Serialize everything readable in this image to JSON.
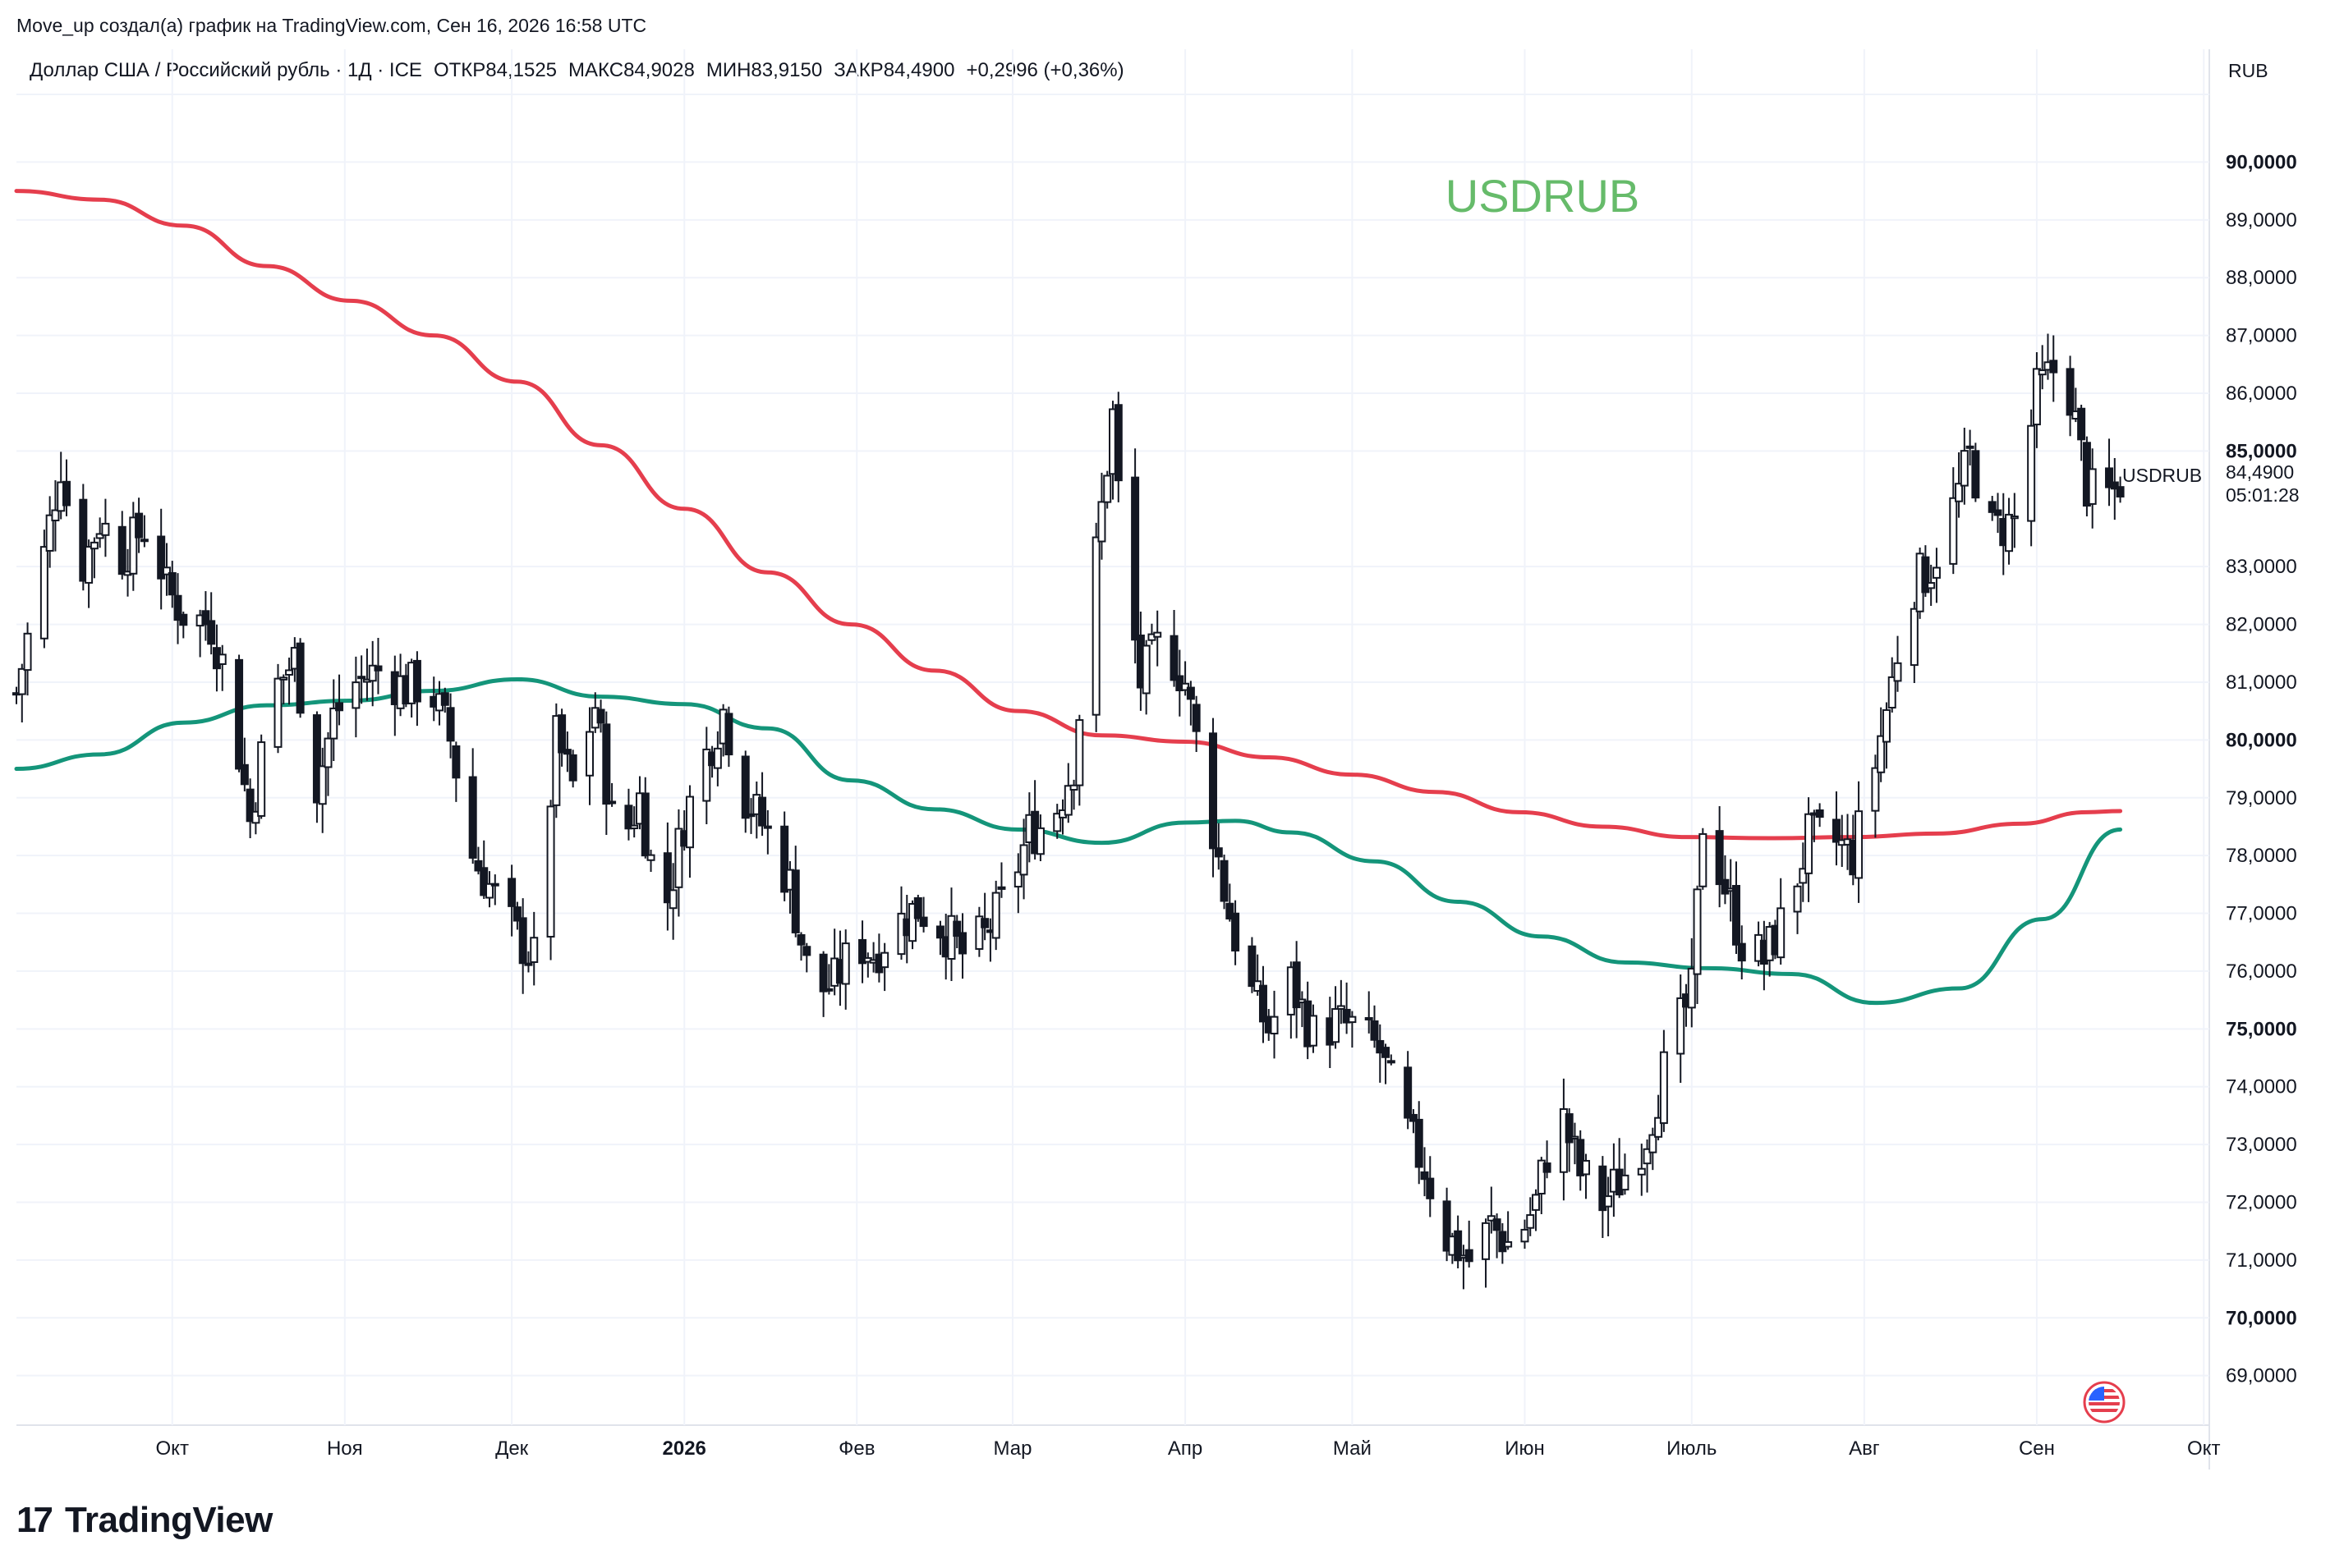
{
  "header": {
    "author_line": "Move_up создал(а) график на TradingView.com, Сен 16, 2026 16:58 UTC",
    "symbol_desc": "Доллар США / Российский рубль · 1Д · ICE",
    "open_label": "ОТКР",
    "open_value": "84,1525",
    "high_label": "МАКС",
    "high_value": "84,9028",
    "low_label": "МИН",
    "low_value": "83,9150",
    "close_label": "ЗАКР",
    "close_value": "84,4900",
    "change": "+0,2996 (+0,36%)"
  },
  "currency_button": "RUB",
  "watermark": "USDRUB",
  "last_price": {
    "value": "84,4900",
    "countdown": "05:01:28",
    "symbol": "USDRUB"
  },
  "footer": {
    "logo_mark": "17",
    "logo_text": "TradingView"
  },
  "colors": {
    "sma_red": "#e53e4d",
    "sma_green": "#14957a",
    "watermark": "#66bb6a",
    "candle_up_fill": "#ffffff",
    "candle_down_fill": "#131722",
    "grid": "#f0f3fa"
  },
  "chart_data": {
    "type": "candlestick",
    "title": "USDRUB",
    "timeframe": "1Д",
    "y_axis": {
      "range": [
        68.2,
        91.1
      ],
      "ticks": [
        "90,0000",
        "89,0000",
        "88,0000",
        "87,0000",
        "86,0000",
        "85,0000",
        "83,0000",
        "82,0000",
        "81,0000",
        "80,0000",
        "79,0000",
        "78,0000",
        "77,0000",
        "76,0000",
        "75,0000",
        "74,0000",
        "73,0000",
        "72,0000",
        "71,0000",
        "70,0000",
        "69,0000"
      ],
      "tick_values": [
        90,
        89,
        88,
        87,
        86,
        85,
        83,
        82,
        81,
        80,
        79,
        78,
        77,
        76,
        75,
        74,
        73,
        72,
        71,
        70,
        69
      ],
      "bold_ticks": [
        90,
        85,
        80,
        75,
        70
      ]
    },
    "x_axis": {
      "months": [
        "Окт",
        "Ноя",
        "Дек",
        "2026",
        "Фев",
        "Мар",
        "Апр",
        "Май",
        "Июн",
        "Июль",
        "Авг",
        "Сен",
        "Окт"
      ],
      "month_dates": [
        "2025-10-01",
        "2025-11-01",
        "2025-12-01",
        "2026-01-01",
        "2026-02-01",
        "2026-03-01",
        "2026-04-01",
        "2026-05-01",
        "2026-06-01",
        "2026-07-01",
        "2026-08-01",
        "2026-09-01",
        "2026-10-01"
      ],
      "bold_months": [
        "2026"
      ],
      "start_date": "2025-09-03",
      "end_date": "2026-10-02"
    },
    "grid": true,
    "close_path": [
      [
        "2025-09-03",
        80.8
      ],
      [
        "2025-09-08",
        83.2
      ],
      [
        "2025-09-11",
        84.8
      ],
      [
        "2025-09-14",
        82.8
      ],
      [
        "2025-09-18",
        83.8
      ],
      [
        "2025-09-22",
        83.2
      ],
      [
        "2025-09-27",
        83.8
      ],
      [
        "2025-09-30",
        82.6
      ],
      [
        "2025-10-03",
        82.2
      ],
      [
        "2025-10-08",
        82.0
      ],
      [
        "2025-10-11",
        81.0
      ],
      [
        "2025-10-15",
        78.6
      ],
      [
        "2025-10-19",
        80.8
      ],
      [
        "2025-10-23",
        81.4
      ],
      [
        "2025-10-27",
        79.2
      ],
      [
        "2025-10-30",
        80.4
      ],
      [
        "2025-11-03",
        81.0
      ],
      [
        "2025-11-07",
        81.2
      ],
      [
        "2025-11-12",
        80.9
      ],
      [
        "2025-11-16",
        81.0
      ],
      [
        "2025-11-20",
        80.0
      ],
      [
        "2025-11-24",
        78.0
      ],
      [
        "2025-11-28",
        77.3
      ],
      [
        "2025-12-02",
        76.6
      ],
      [
        "2025-12-05",
        76.2
      ],
      [
        "2025-12-09",
        80.0
      ],
      [
        "2025-12-12",
        79.2
      ],
      [
        "2025-12-16",
        80.6
      ],
      [
        "2025-12-20",
        78.0
      ],
      [
        "2025-12-24",
        79.0
      ],
      [
        "2025-12-28",
        76.8
      ],
      [
        "2026-01-01",
        78.6
      ],
      [
        "2026-01-04",
        79.5
      ],
      [
        "2026-01-08",
        80.5
      ],
      [
        "2026-01-12",
        79.0
      ],
      [
        "2026-01-16",
        78.4
      ],
      [
        "2026-01-20",
        77.5
      ],
      [
        "2026-01-24",
        75.6
      ],
      [
        "2026-01-28",
        75.8
      ],
      [
        "2026-02-01",
        76.5
      ],
      [
        "2026-02-04",
        76.3
      ],
      [
        "2026-02-08",
        76.8
      ],
      [
        "2026-02-12",
        77.1
      ],
      [
        "2026-02-16",
        76.8
      ],
      [
        "2026-02-20",
        76.3
      ],
      [
        "2026-02-24",
        76.6
      ],
      [
        "2026-02-28",
        77.3
      ],
      [
        "2026-03-04",
        78.4
      ],
      [
        "2026-03-08",
        78.6
      ],
      [
        "2026-03-12",
        79.6
      ],
      [
        "2026-03-16",
        83.2
      ],
      [
        "2026-03-19",
        85.6
      ],
      [
        "2026-03-21",
        83.0
      ],
      [
        "2026-03-24",
        81.0
      ],
      [
        "2026-03-28",
        81.8
      ],
      [
        "2026-04-01",
        81.0
      ],
      [
        "2026-04-05",
        79.0
      ],
      [
        "2026-04-08",
        77.4
      ],
      [
        "2026-04-12",
        75.8
      ],
      [
        "2026-04-16",
        75.0
      ],
      [
        "2026-04-20",
        75.8
      ],
      [
        "2026-04-24",
        74.9
      ],
      [
        "2026-04-28",
        75.1
      ],
      [
        "2026-05-02",
        75.0
      ],
      [
        "2026-05-06",
        74.6
      ],
      [
        "2026-05-10",
        73.4
      ],
      [
        "2026-05-14",
        72.6
      ],
      [
        "2026-05-18",
        71.4
      ],
      [
        "2026-05-22",
        71.0
      ],
      [
        "2026-05-26",
        71.6
      ],
      [
        "2026-05-30",
        71.2
      ],
      [
        "2026-06-03",
        72.0
      ],
      [
        "2026-06-07",
        73.7
      ],
      [
        "2026-06-11",
        72.5
      ],
      [
        "2026-06-15",
        72.0
      ],
      [
        "2026-06-19",
        72.5
      ],
      [
        "2026-06-23",
        73.2
      ],
      [
        "2026-06-27",
        74.6
      ],
      [
        "2026-07-01",
        75.6
      ],
      [
        "2026-07-03",
        78.6
      ],
      [
        "2026-07-06",
        77.8
      ],
      [
        "2026-07-10",
        76.5
      ],
      [
        "2026-07-14",
        76.2
      ],
      [
        "2026-07-18",
        77.0
      ],
      [
        "2026-07-22",
        78.3
      ],
      [
        "2026-07-26",
        78.3
      ],
      [
        "2026-07-30",
        78.0
      ],
      [
        "2026-08-03",
        79.6
      ],
      [
        "2026-08-06",
        81.0
      ],
      [
        "2026-08-09",
        82.6
      ],
      [
        "2026-08-13",
        83.0
      ],
      [
        "2026-08-17",
        84.0
      ],
      [
        "2026-08-20",
        84.9
      ],
      [
        "2026-08-24",
        83.6
      ],
      [
        "2026-08-28",
        83.8
      ],
      [
        "2026-09-01",
        86.0
      ],
      [
        "2026-09-04",
        86.4
      ],
      [
        "2026-09-07",
        86.0
      ],
      [
        "2026-09-10",
        84.4
      ],
      [
        "2026-09-12",
        84.1
      ],
      [
        "2026-09-15",
        84.3
      ],
      [
        "2026-09-16",
        84.49
      ]
    ],
    "series": [
      {
        "name": "",
        "color": "#e53e4d",
        "points": [
          [
            "2025-09-03",
            89.5
          ],
          [
            "2025-09-18",
            89.35
          ],
          [
            "2025-10-03",
            88.9
          ],
          [
            "2025-10-18",
            88.2
          ],
          [
            "2025-11-02",
            87.6
          ],
          [
            "2025-11-17",
            87.0
          ],
          [
            "2025-12-02",
            86.2
          ],
          [
            "2025-12-17",
            85.1
          ],
          [
            "2026-01-01",
            84.0
          ],
          [
            "2026-01-16",
            82.9
          ],
          [
            "2026-01-31",
            82.0
          ],
          [
            "2026-02-15",
            81.2
          ],
          [
            "2026-03-02",
            80.5
          ],
          [
            "2026-03-17",
            80.08
          ],
          [
            "2026-04-01",
            79.97
          ],
          [
            "2026-04-16",
            79.7
          ],
          [
            "2026-05-01",
            79.4
          ],
          [
            "2026-05-16",
            79.1
          ],
          [
            "2026-05-31",
            78.75
          ],
          [
            "2026-06-15",
            78.5
          ],
          [
            "2026-06-30",
            78.32
          ],
          [
            "2026-07-15",
            78.3
          ],
          [
            "2026-07-30",
            78.32
          ],
          [
            "2026-08-14",
            78.38
          ],
          [
            "2026-08-29",
            78.55
          ],
          [
            "2026-09-10",
            78.75
          ],
          [
            "2026-09-16",
            78.77
          ]
        ]
      },
      {
        "name": "",
        "color": "#14957a",
        "points": [
          [
            "2025-09-03",
            79.5
          ],
          [
            "2025-09-18",
            79.75
          ],
          [
            "2025-10-03",
            80.3
          ],
          [
            "2025-10-18",
            80.6
          ],
          [
            "2025-11-02",
            80.68
          ],
          [
            "2025-11-17",
            80.85
          ],
          [
            "2025-12-02",
            81.05
          ],
          [
            "2025-12-17",
            80.75
          ],
          [
            "2026-01-01",
            80.62
          ],
          [
            "2026-01-16",
            80.2
          ],
          [
            "2026-01-31",
            79.3
          ],
          [
            "2026-02-15",
            78.8
          ],
          [
            "2026-03-02",
            78.45
          ],
          [
            "2026-03-17",
            78.22
          ],
          [
            "2026-04-01",
            78.57
          ],
          [
            "2026-04-10",
            78.6
          ],
          [
            "2026-04-20",
            78.4
          ],
          [
            "2026-05-05",
            77.9
          ],
          [
            "2026-05-20",
            77.2
          ],
          [
            "2026-06-04",
            76.6
          ],
          [
            "2026-06-19",
            76.15
          ],
          [
            "2026-07-04",
            76.05
          ],
          [
            "2026-07-19",
            75.95
          ],
          [
            "2026-08-03",
            75.45
          ],
          [
            "2026-08-18",
            75.7
          ],
          [
            "2026-09-02",
            76.9
          ],
          [
            "2026-09-16",
            78.45
          ]
        ]
      }
    ]
  }
}
